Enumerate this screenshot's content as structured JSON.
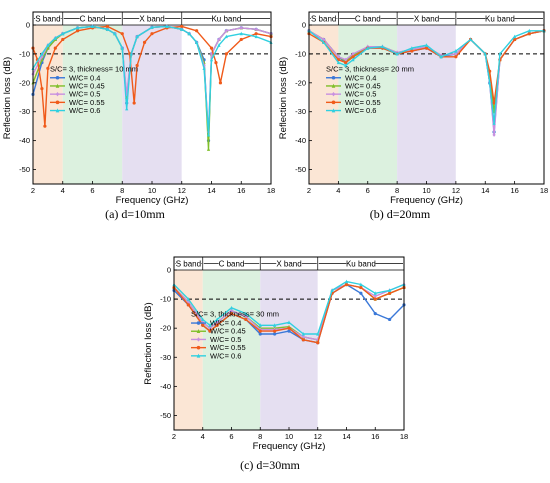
{
  "legend_title": "W/C",
  "chart_data": [
    {
      "type": "line",
      "caption": "(a) d=10mm",
      "xlabel": "Frequency (GHz)",
      "ylabel": "Reflection loss (dB)",
      "xlim": [
        2,
        18
      ],
      "ylim": [
        -55,
        0
      ],
      "xticks": [
        2,
        4,
        6,
        8,
        10,
        12,
        14,
        16,
        18
      ],
      "yticks": [
        -50,
        -40,
        -30,
        -20,
        -10,
        0
      ],
      "reference_line": -10,
      "bands": [
        {
          "name": "S band",
          "from": 2,
          "to": 4,
          "color": "#fbe3d0"
        },
        {
          "name": "C band",
          "from": 4,
          "to": 8,
          "color": "#d8f0dc"
        },
        {
          "name": "X band",
          "from": 8,
          "to": 12,
          "color": "#e2dcef"
        },
        {
          "name": "Ku band",
          "from": 12,
          "to": 18,
          "color": "#ffffff"
        }
      ],
      "annotation": "S/C= 3, thickness= 10 mm",
      "legend_location": "lower-left",
      "series": [
        {
          "name": "W/C= 0.4",
          "color": "#3a78d8",
          "marker": "circle",
          "x": [
            2,
            2.6,
            3,
            3.5,
            4,
            5,
            6,
            7,
            7.5,
            8,
            8.3,
            8.6,
            9,
            10,
            11,
            12,
            12.5,
            13,
            13.5,
            13.8,
            14,
            14.5,
            15,
            16,
            17,
            18
          ],
          "y": [
            -24,
            -13,
            -8,
            -5,
            -3,
            -1,
            -0.5,
            -1.5,
            -3,
            -8,
            -27,
            -10,
            -4,
            -0.8,
            -0.5,
            -1.5,
            -3,
            -6,
            -12,
            -40,
            -10,
            -5,
            -2,
            -1,
            -1.5,
            -3
          ]
        },
        {
          "name": "W/C= 0.45",
          "color": "#7fbf2a",
          "marker": "triangle",
          "x": [
            2,
            2.6,
            3,
            3.5,
            4,
            5,
            6,
            7,
            7.5,
            8,
            8.3,
            8.6,
            9,
            10,
            11,
            12,
            12.5,
            13,
            13.5,
            13.8,
            14,
            14.5,
            15,
            16,
            17,
            18
          ],
          "y": [
            -20,
            -12,
            -8,
            -5,
            -3,
            -1,
            -0.5,
            -1.5,
            -3,
            -8,
            -25,
            -10,
            -4,
            -0.8,
            -0.5,
            -1.5,
            -3,
            -6,
            -13,
            -43,
            -10,
            -5,
            -2,
            -1,
            -1.5,
            -3
          ]
        },
        {
          "name": "W/C= 0.5",
          "color": "#c890e0",
          "marker": "diamond",
          "x": [
            2,
            2.6,
            3,
            3.5,
            4,
            5,
            6,
            7,
            7.5,
            8,
            8.3,
            8.6,
            9,
            10,
            11,
            12,
            12.5,
            13,
            13.5,
            13.8,
            14,
            14.5,
            15,
            16,
            17,
            18
          ],
          "y": [
            -17,
            -11,
            -7,
            -4.5,
            -3,
            -1,
            -0.5,
            -1.5,
            -3,
            -8,
            -24,
            -10,
            -4,
            -0.8,
            -0.5,
            -1.5,
            -3,
            -6,
            -14,
            -37,
            -10,
            -5,
            -2,
            -1,
            -1.5,
            -3
          ]
        },
        {
          "name": "W/C= 0.55",
          "color": "#f05a1a",
          "marker": "circle",
          "x": [
            2,
            2.3,
            2.6,
            2.8,
            3,
            3.5,
            4,
            5,
            6,
            7,
            8,
            8.5,
            8.8,
            9,
            9.5,
            10,
            11,
            12,
            13,
            14,
            14.3,
            14.6,
            15,
            16,
            17,
            18
          ],
          "y": [
            -8,
            -12,
            -22,
            -35,
            -15,
            -8,
            -5,
            -2,
            -1,
            -0.5,
            -3,
            -10,
            -27,
            -14,
            -6,
            -3,
            -1,
            -0.5,
            -2,
            -8,
            -13,
            -20,
            -10,
            -5,
            -3,
            -4
          ]
        },
        {
          "name": "W/C= 0.6",
          "color": "#30d0e0",
          "marker": "triangle",
          "x": [
            2,
            2.6,
            3,
            3.5,
            4,
            5,
            6,
            7,
            7.5,
            8,
            8.3,
            8.6,
            9,
            10,
            11,
            12,
            12.5,
            13,
            13.5,
            13.8,
            14,
            14.5,
            15,
            16,
            17,
            18
          ],
          "y": [
            -15,
            -10,
            -7,
            -4.5,
            -3,
            -1,
            -0.5,
            -1.5,
            -3,
            -8,
            -29,
            -10,
            -4,
            -0.8,
            -0.5,
            -1.5,
            -3,
            -6,
            -15,
            -38,
            -12,
            -7,
            -4,
            -3,
            -4,
            -6
          ]
        }
      ]
    },
    {
      "type": "line",
      "caption": "(b) d=20mm",
      "xlabel": "Frequency (GHz)",
      "ylabel": "Reflection loss (dB)",
      "xlim": [
        2,
        18
      ],
      "ylim": [
        -55,
        0
      ],
      "xticks": [
        2,
        4,
        6,
        8,
        10,
        12,
        14,
        16,
        18
      ],
      "yticks": [
        -50,
        -40,
        -30,
        -20,
        -10,
        0
      ],
      "reference_line": -10,
      "bands": [
        {
          "name": "S band",
          "from": 2,
          "to": 4,
          "color": "#fbe3d0"
        },
        {
          "name": "C band",
          "from": 4,
          "to": 8,
          "color": "#d8f0dc"
        },
        {
          "name": "X band",
          "from": 8,
          "to": 12,
          "color": "#e2dcef"
        },
        {
          "name": "Ku band",
          "from": 12,
          "to": 18,
          "color": "#ffffff"
        }
      ],
      "annotation": "S/C= 3, thickness= 20 mm",
      "legend_location": "lower-left",
      "series": [
        {
          "name": "W/C= 0.4",
          "color": "#3a78d8",
          "marker": "circle",
          "x": [
            2,
            3,
            4,
            4.5,
            5,
            6,
            7,
            8,
            9,
            10,
            11,
            12,
            13,
            14,
            14.3,
            14.6,
            15,
            16,
            17,
            18
          ],
          "y": [
            -2,
            -5,
            -11,
            -13,
            -11,
            -8,
            -8,
            -10,
            -9,
            -8,
            -11,
            -10,
            -5,
            -10,
            -20,
            -37,
            -12,
            -5,
            -3,
            -2
          ]
        },
        {
          "name": "W/C= 0.45",
          "color": "#7fbf2a",
          "marker": "triangle",
          "x": [
            2,
            3,
            4,
            4.5,
            5,
            6,
            7,
            8,
            9,
            10,
            11,
            12,
            13,
            14,
            14.3,
            14.6,
            15,
            16,
            17,
            18
          ],
          "y": [
            -2,
            -5,
            -11,
            -12.5,
            -10.5,
            -7.5,
            -7.5,
            -9.5,
            -8.5,
            -7.5,
            -10.5,
            -10,
            -5,
            -10,
            -18,
            -30,
            -12,
            -5,
            -3,
            -2
          ]
        },
        {
          "name": "W/C= 0.5",
          "color": "#c890e0",
          "marker": "diamond",
          "x": [
            2,
            3,
            4,
            4.5,
            5,
            6,
            7,
            8,
            9,
            10,
            11,
            12,
            13,
            14,
            14.3,
            14.6,
            15,
            16,
            17,
            18
          ],
          "y": [
            -2,
            -5,
            -11,
            -12,
            -10,
            -7.5,
            -7.5,
            -9.5,
            -8.5,
            -7.5,
            -10.5,
            -10,
            -5,
            -10,
            -20,
            -38,
            -12,
            -5,
            -3,
            -2
          ]
        },
        {
          "name": "W/C= 0.55",
          "color": "#f05a1a",
          "marker": "circle",
          "x": [
            2,
            3,
            4,
            4.5,
            5,
            6,
            7,
            8,
            9,
            10,
            11,
            12,
            13,
            14,
            14.3,
            14.6,
            15,
            16,
            17,
            18
          ],
          "y": [
            -3,
            -6,
            -12,
            -13,
            -11,
            -8,
            -8,
            -10,
            -9,
            -8,
            -11,
            -11,
            -5,
            -10,
            -16,
            -27,
            -12,
            -5,
            -3,
            -2
          ]
        },
        {
          "name": "W/C= 0.6",
          "color": "#30d0e0",
          "marker": "triangle",
          "x": [
            2,
            3,
            4,
            4.5,
            5,
            6,
            7,
            8,
            9,
            10,
            11,
            12,
            13,
            14,
            14.3,
            14.6,
            15,
            16,
            17,
            18
          ],
          "y": [
            -2,
            -6,
            -13,
            -14,
            -12,
            -8,
            -7.5,
            -10,
            -8,
            -7,
            -11,
            -9,
            -5,
            -10,
            -20,
            -34,
            -10,
            -4,
            -2,
            -2
          ]
        }
      ]
    },
    {
      "type": "line",
      "caption": "(c) d=30mm",
      "xlabel": "Frequency (GHz)",
      "ylabel": "Reflection loss (dB)",
      "xlim": [
        2,
        18
      ],
      "ylim": [
        -55,
        0
      ],
      "xticks": [
        2,
        4,
        6,
        8,
        10,
        12,
        14,
        16,
        18
      ],
      "yticks": [
        -50,
        -40,
        -30,
        -20,
        -10,
        0
      ],
      "reference_line": -10,
      "bands": [
        {
          "name": "S band",
          "from": 2,
          "to": 4,
          "color": "#fbe3d0"
        },
        {
          "name": "C band",
          "from": 4,
          "to": 8,
          "color": "#d8f0dc"
        },
        {
          "name": "X band",
          "from": 8,
          "to": 12,
          "color": "#e2dcef"
        },
        {
          "name": "Ku band",
          "from": 12,
          "to": 18,
          "color": "#ffffff"
        }
      ],
      "annotation": "S/C= 3, thickness= 30 mm",
      "legend_location": "lower-left",
      "series": [
        {
          "name": "W/C= 0.4",
          "color": "#3a78d8",
          "marker": "circle",
          "x": [
            2,
            3,
            4,
            4.5,
            5,
            6,
            7,
            8,
            9,
            10,
            11,
            12,
            13,
            14,
            15,
            16,
            17,
            18
          ],
          "y": [
            -7,
            -12,
            -19,
            -21,
            -19,
            -15,
            -17,
            -22,
            -22,
            -21,
            -24,
            -25,
            -8,
            -5,
            -8,
            -15,
            -17,
            -12
          ]
        },
        {
          "name": "W/C= 0.45",
          "color": "#7fbf2a",
          "marker": "triangle",
          "x": [
            2,
            3,
            4,
            4.5,
            5,
            6,
            7,
            8,
            9,
            10,
            11,
            12,
            13,
            14,
            15,
            16,
            17,
            18
          ],
          "y": [
            -6,
            -11,
            -18,
            -20,
            -18,
            -14,
            -16,
            -20,
            -20,
            -19.5,
            -23,
            -24,
            -7,
            -5,
            -6,
            -10,
            -8,
            -6
          ]
        },
        {
          "name": "W/C= 0.5",
          "color": "#c890e0",
          "marker": "diamond",
          "x": [
            2,
            3,
            4,
            4.5,
            5,
            6,
            7,
            8,
            9,
            10,
            11,
            12,
            13,
            14,
            15,
            16,
            17,
            18
          ],
          "y": [
            -6,
            -11,
            -18,
            -20,
            -18,
            -14,
            -16,
            -20.5,
            -20.5,
            -20,
            -23,
            -24,
            -7,
            -5,
            -6,
            -9,
            -7,
            -5
          ]
        },
        {
          "name": "W/C= 0.55",
          "color": "#f05a1a",
          "marker": "circle",
          "x": [
            2,
            3,
            4,
            4.5,
            5,
            6,
            7,
            8,
            9,
            10,
            11,
            12,
            13,
            14,
            15,
            16,
            17,
            18
          ],
          "y": [
            -6,
            -12,
            -19,
            -21,
            -19,
            -15,
            -17,
            -21,
            -21,
            -20,
            -24,
            -25,
            -8,
            -5,
            -6,
            -10,
            -8,
            -6
          ]
        },
        {
          "name": "W/C= 0.6",
          "color": "#30d0e0",
          "marker": "triangle",
          "x": [
            2,
            3,
            4,
            4.5,
            5,
            6,
            7,
            8,
            9,
            10,
            11,
            12,
            13,
            14,
            15,
            16,
            17,
            18
          ],
          "y": [
            -5,
            -10,
            -17,
            -19,
            -17,
            -13,
            -15,
            -19,
            -19,
            -18,
            -22,
            -22,
            -7,
            -4,
            -5,
            -8,
            -7,
            -5
          ]
        }
      ]
    }
  ]
}
